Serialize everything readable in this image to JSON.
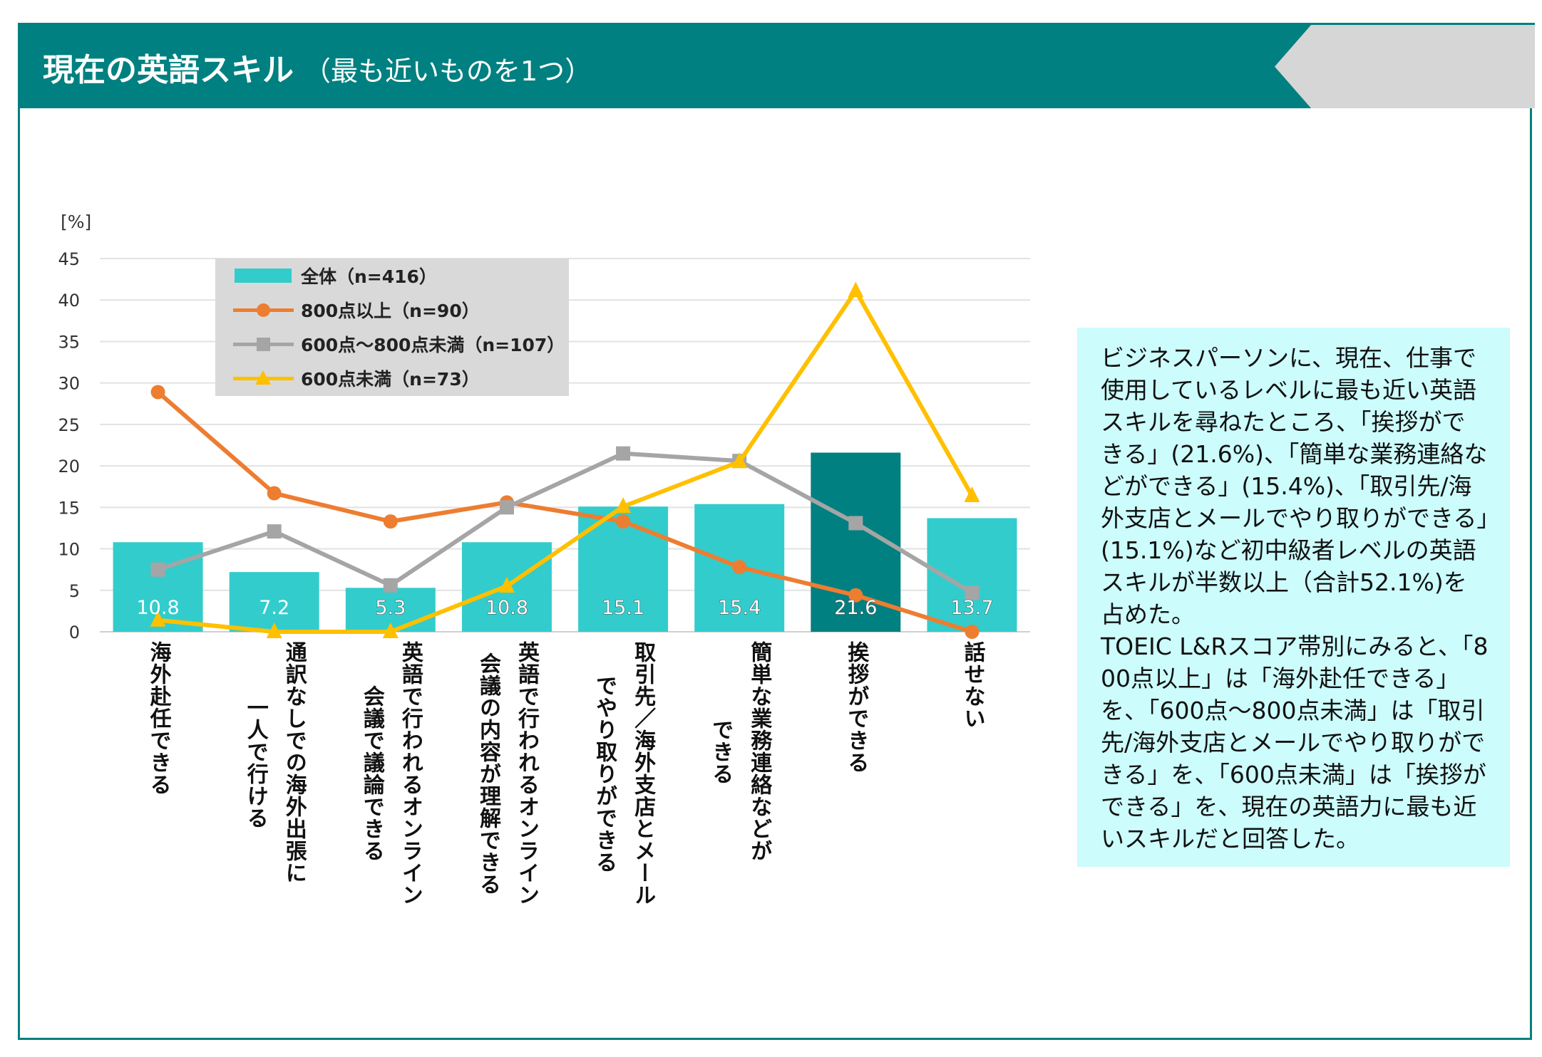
{
  "header": {
    "title": "現在の英語スキル",
    "subtitle": "（最も近いものを1つ）"
  },
  "colors": {
    "header": "#008080",
    "bar": "#33cccc",
    "bar_highlight": "#008080",
    "over800": "#ed7d31",
    "mid": "#a5a5a5",
    "under600": "#ffc000",
    "textbox": "#ccfcfc",
    "legend_bg": "#d9d9d9"
  },
  "chart_data": {
    "type": "bar",
    "ylabel": "[%]",
    "ylim": [
      0,
      45
    ],
    "yticks": [
      0,
      5,
      10,
      15,
      20,
      25,
      30,
      35,
      40,
      45
    ],
    "grid": true,
    "legend_position": "top-left",
    "categories": [
      "海外赴任できる",
      "通訳なしでの海外出張に\n一人で行ける",
      "英語で行われるオンライン\n会議で議論できる",
      "英語で行われるオンライン\n会議の内容が理解できる",
      "取引先／海外支店とメール\nでやり取りができる",
      "簡単な業務連絡などが\nできる",
      "挨拶ができる",
      "話せない"
    ],
    "series": [
      {
        "name": "全体（n=416）",
        "type": "bar",
        "values": [
          10.8,
          7.2,
          5.3,
          10.8,
          15.1,
          15.4,
          21.6,
          13.7
        ],
        "labels": [
          "10.8",
          "7.2",
          "5.3",
          "10.8",
          "15.1",
          "15.4",
          "21.6",
          "13.7"
        ],
        "highlight_index": 6
      },
      {
        "name": "800点以上（n=90）",
        "type": "line",
        "marker": "circle",
        "values": [
          28.9,
          16.7,
          13.3,
          15.6,
          13.3,
          7.8,
          4.4,
          0.0
        ]
      },
      {
        "name": "600点～800点未満（n=107）",
        "type": "line",
        "marker": "square",
        "values": [
          7.5,
          12.1,
          5.6,
          15.0,
          21.5,
          20.6,
          13.1,
          4.7
        ]
      },
      {
        "name": "600点未満（n=73）",
        "type": "line",
        "marker": "triangle",
        "values": [
          1.4,
          0.0,
          0.0,
          5.5,
          15.1,
          20.5,
          41.1,
          16.4
        ]
      }
    ]
  },
  "summary": {
    "paragraphs": [
      "ビジネスパーソンに、現在、仕事で使用しているレベルに最も近い英語スキルを尋ねたところ、「挨拶ができる」(21.6%)、「簡単な業務連絡などができる」(15.4%)、「取引先/海外支店とメールでやり取りができる」(15.1%)など初中級者レベルの英語スキルが半数以上（合計52.1%)を占めた。",
      "TOEIC L&Rスコア帯別にみると、「800点以上」は「海外赴任できる」を、「600点～800点未満」は「取引先/海外支店とメールでやり取りができる」を、「600点未満」は「挨拶ができる」を、現在の英語力に最も近いスキルだと回答した。"
    ]
  }
}
